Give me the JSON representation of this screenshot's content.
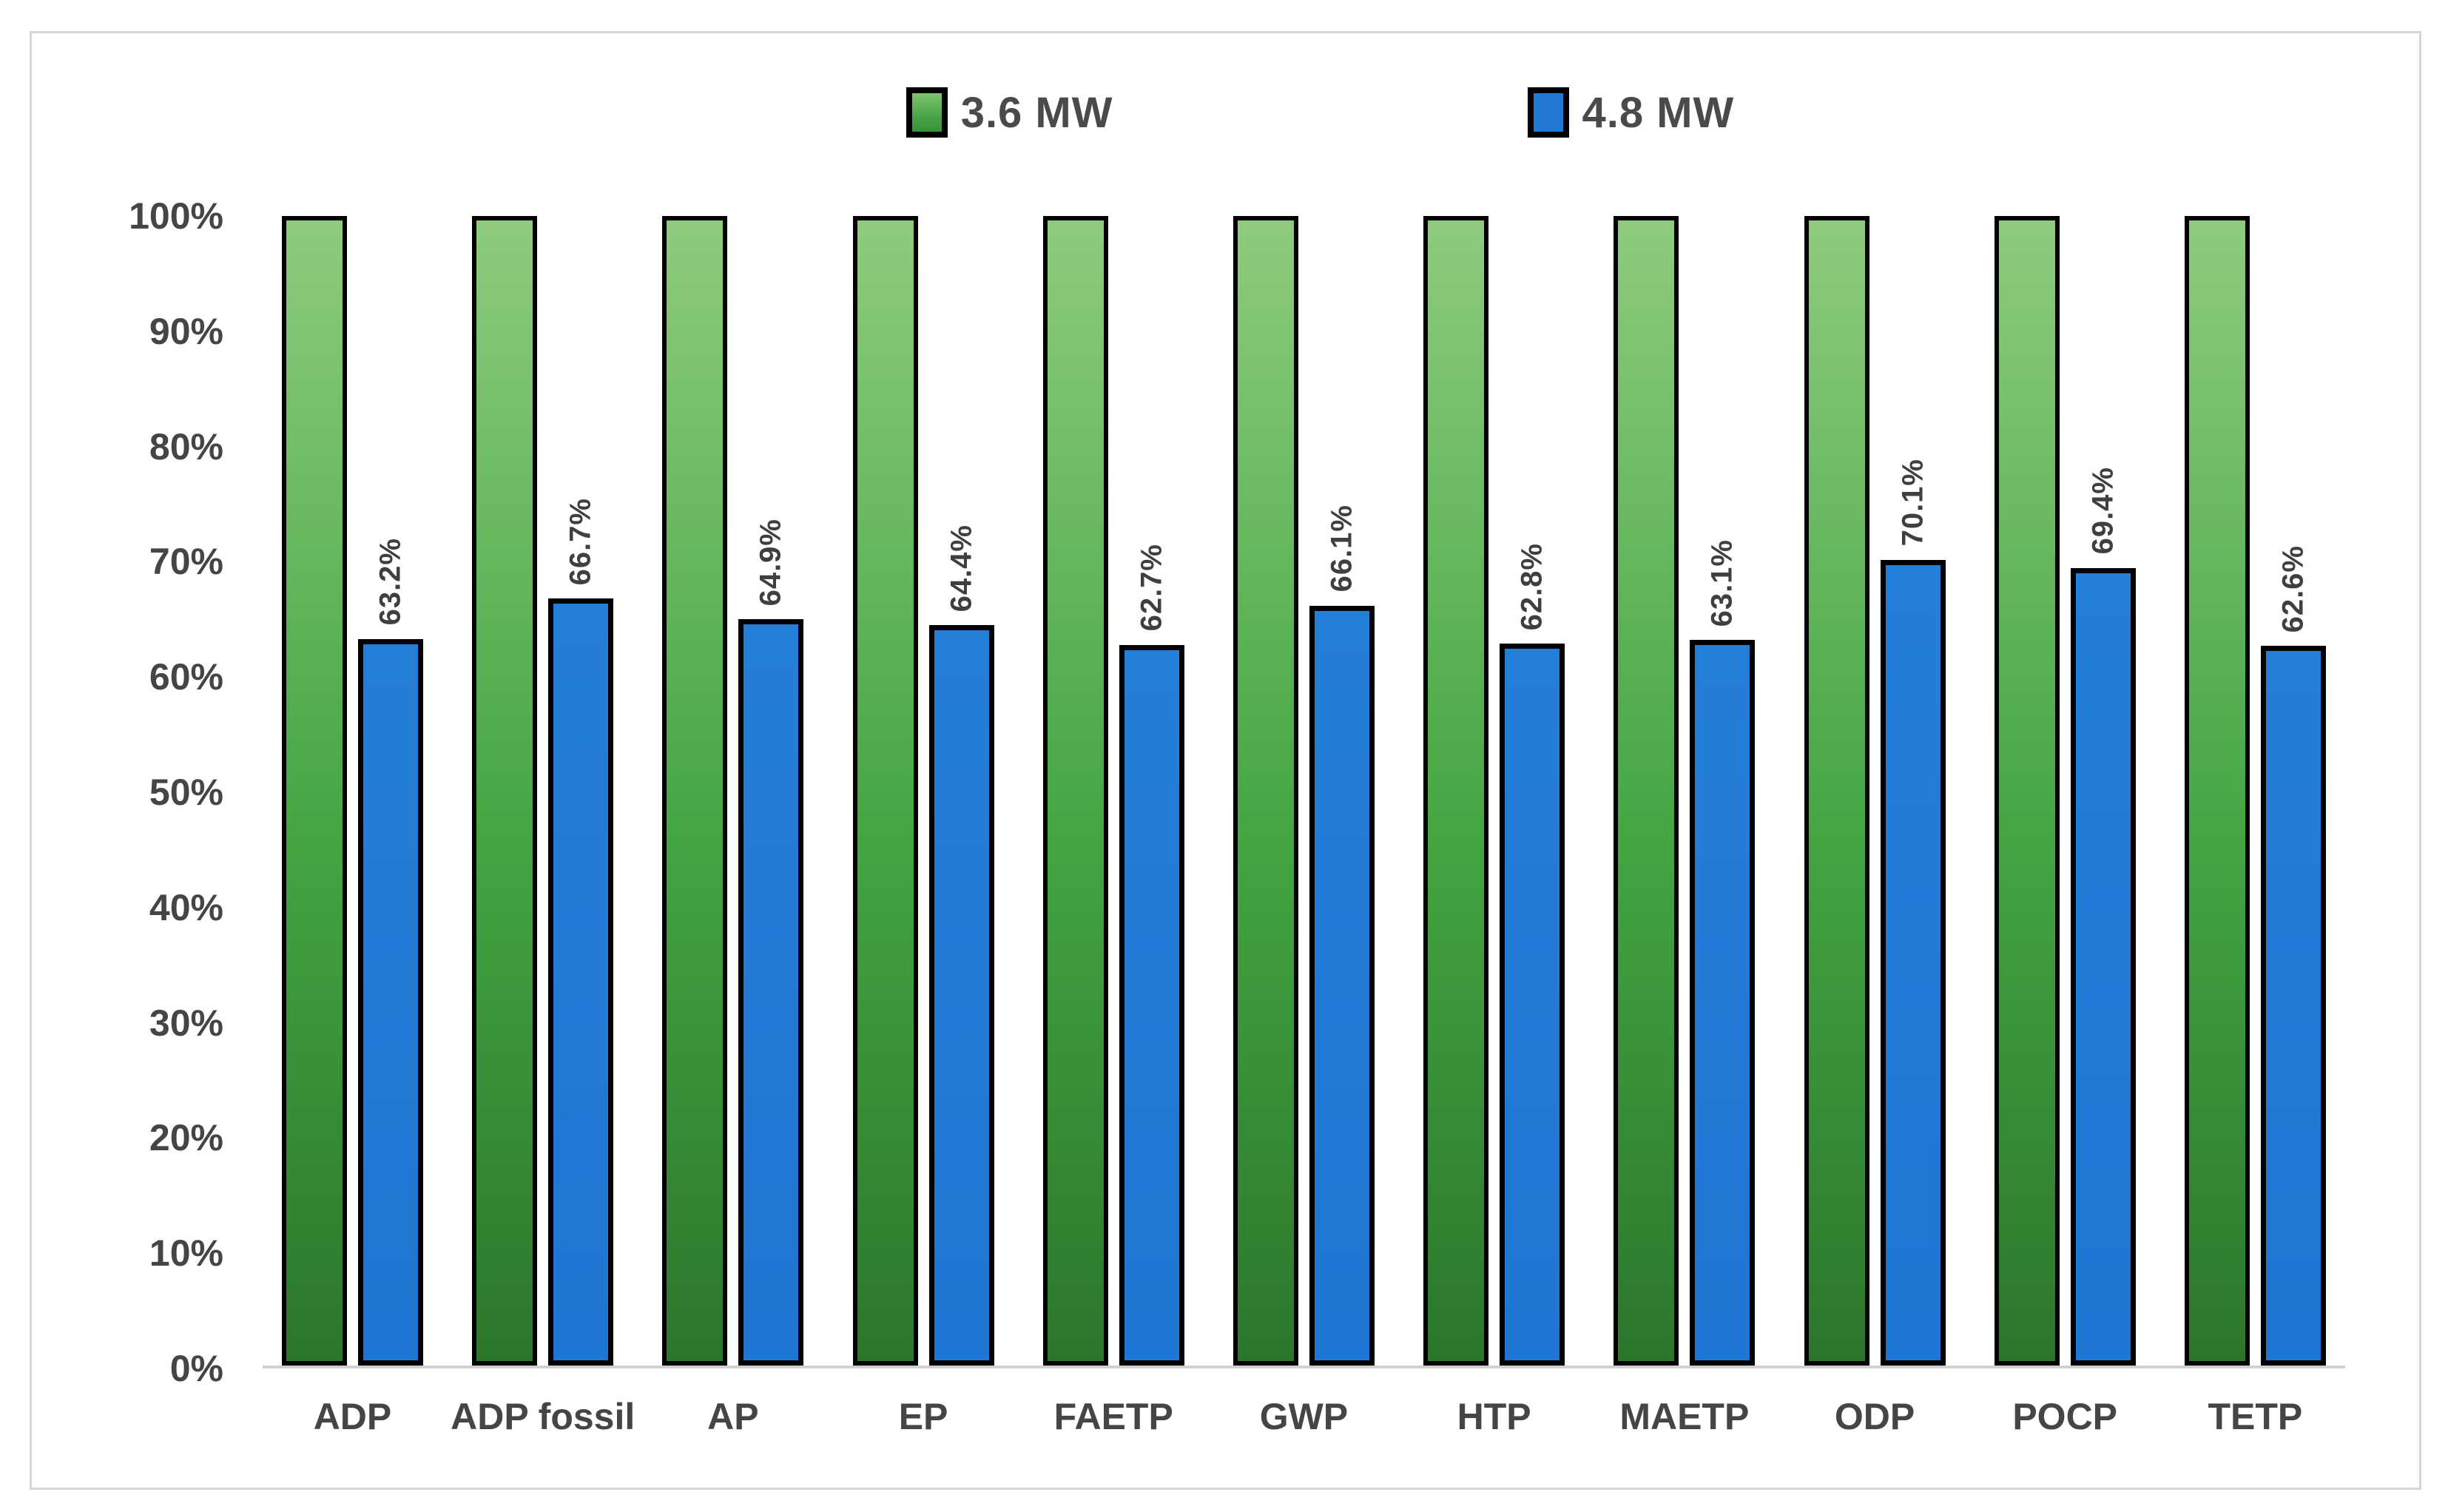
{
  "chart_data": {
    "type": "bar",
    "title": "",
    "xlabel": "",
    "ylabel": "",
    "ylim": [
      0,
      100
    ],
    "grid": false,
    "legend_position": "top-center",
    "categories": [
      "ADP",
      "ADP fossil",
      "AP",
      "EP",
      "FAETP",
      "GWP",
      "HTP",
      "MAETP",
      "ODP",
      "POCP",
      "TETP"
    ],
    "yticks": [
      "100%",
      "90%",
      "80%",
      "70%",
      "60%",
      "50%",
      "40%",
      "30%",
      "20%",
      "10%",
      "0%"
    ],
    "series": [
      {
        "name": "3.6 MW",
        "color": "#42a542",
        "values": [
          100,
          100,
          100,
          100,
          100,
          100,
          100,
          100,
          100,
          100,
          100
        ],
        "labels": [
          "",
          "",
          "",
          "",
          "",
          "",
          "",
          "",
          "",
          "",
          ""
        ]
      },
      {
        "name": "4.8 MW",
        "color": "#1f76d2",
        "values": [
          63.2,
          66.7,
          64.9,
          64.4,
          62.7,
          66.1,
          62.8,
          63.1,
          70.1,
          69.4,
          62.6
        ],
        "labels": [
          "63.2%",
          "66.7%",
          "64.9%",
          "64.4%",
          "62.7%",
          "66.1%",
          "62.8%",
          "63.1%",
          "70.1%",
          "69.4%",
          "62.6%"
        ]
      }
    ]
  },
  "legend": {
    "items": [
      {
        "label": "3.6 MW",
        "color": "#42a542"
      },
      {
        "label": "4.8 MW",
        "color": "#1f76d2"
      }
    ]
  },
  "colors": {
    "bar_border": "#000000",
    "green_gradient_top": "#8ecb7e",
    "green_gradient_bottom": "#2c762c",
    "blue_fill": "#1f76d2",
    "axis_line": "#cfcfcf",
    "text": "#454545",
    "frame_border": "#d6d6d6",
    "background": "#ffffff"
  }
}
